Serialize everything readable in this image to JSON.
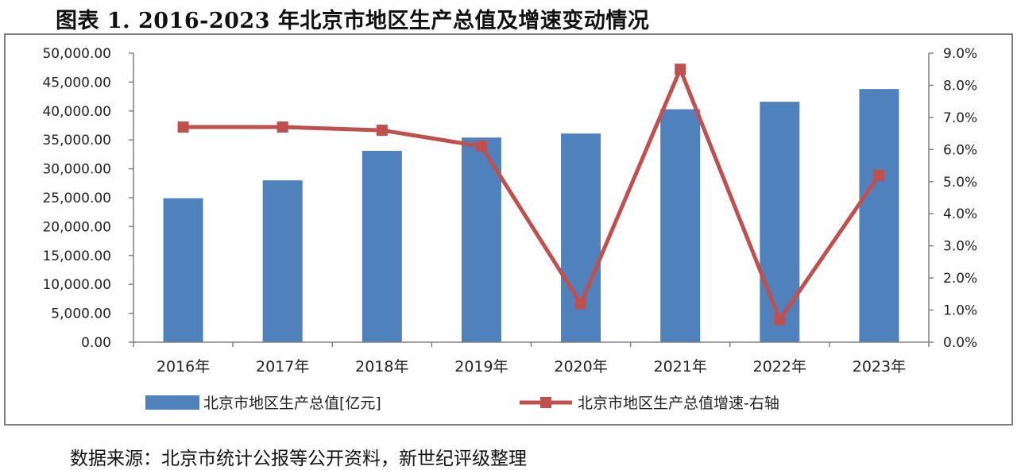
{
  "figure": {
    "title": "图表 1.   2016-2023 年北京市地区生产总值及增速变动情况",
    "source": "数据来源：北京市统计公报等公开资料，新世纪评级整理"
  },
  "chart_data": {
    "type": "bar+line",
    "categories": [
      "2016年",
      "2017年",
      "2018年",
      "2019年",
      "2020年",
      "2021年",
      "2022年",
      "2023年"
    ],
    "series": [
      {
        "name": "北京市地区生产总值[亿元]",
        "type": "bar",
        "axis": "left",
        "color": "#4f81bd",
        "values": [
          24900,
          28000,
          33100,
          35400,
          36100,
          40300,
          41600,
          43800
        ]
      },
      {
        "name": "北京市地区生产总值增速-右轴",
        "type": "line",
        "axis": "right",
        "color": "#c0504d",
        "values": [
          6.7,
          6.7,
          6.6,
          6.1,
          1.2,
          8.5,
          0.7,
          5.2
        ]
      }
    ],
    "y_left": {
      "min": 0,
      "max": 50000,
      "step": 5000,
      "ticks": [
        "0.00",
        "5,000.00",
        "10,000.00",
        "15,000.00",
        "20,000.00",
        "25,000.00",
        "30,000.00",
        "35,000.00",
        "40,000.00",
        "45,000.00",
        "50,000.00"
      ]
    },
    "y_right": {
      "min": 0,
      "max": 9,
      "step": 1,
      "ticks": [
        "0.0%",
        "1.0%",
        "2.0%",
        "3.0%",
        "4.0%",
        "5.0%",
        "6.0%",
        "7.0%",
        "8.0%",
        "9.0%"
      ]
    },
    "grid": false,
    "legend_position": "bottom"
  }
}
